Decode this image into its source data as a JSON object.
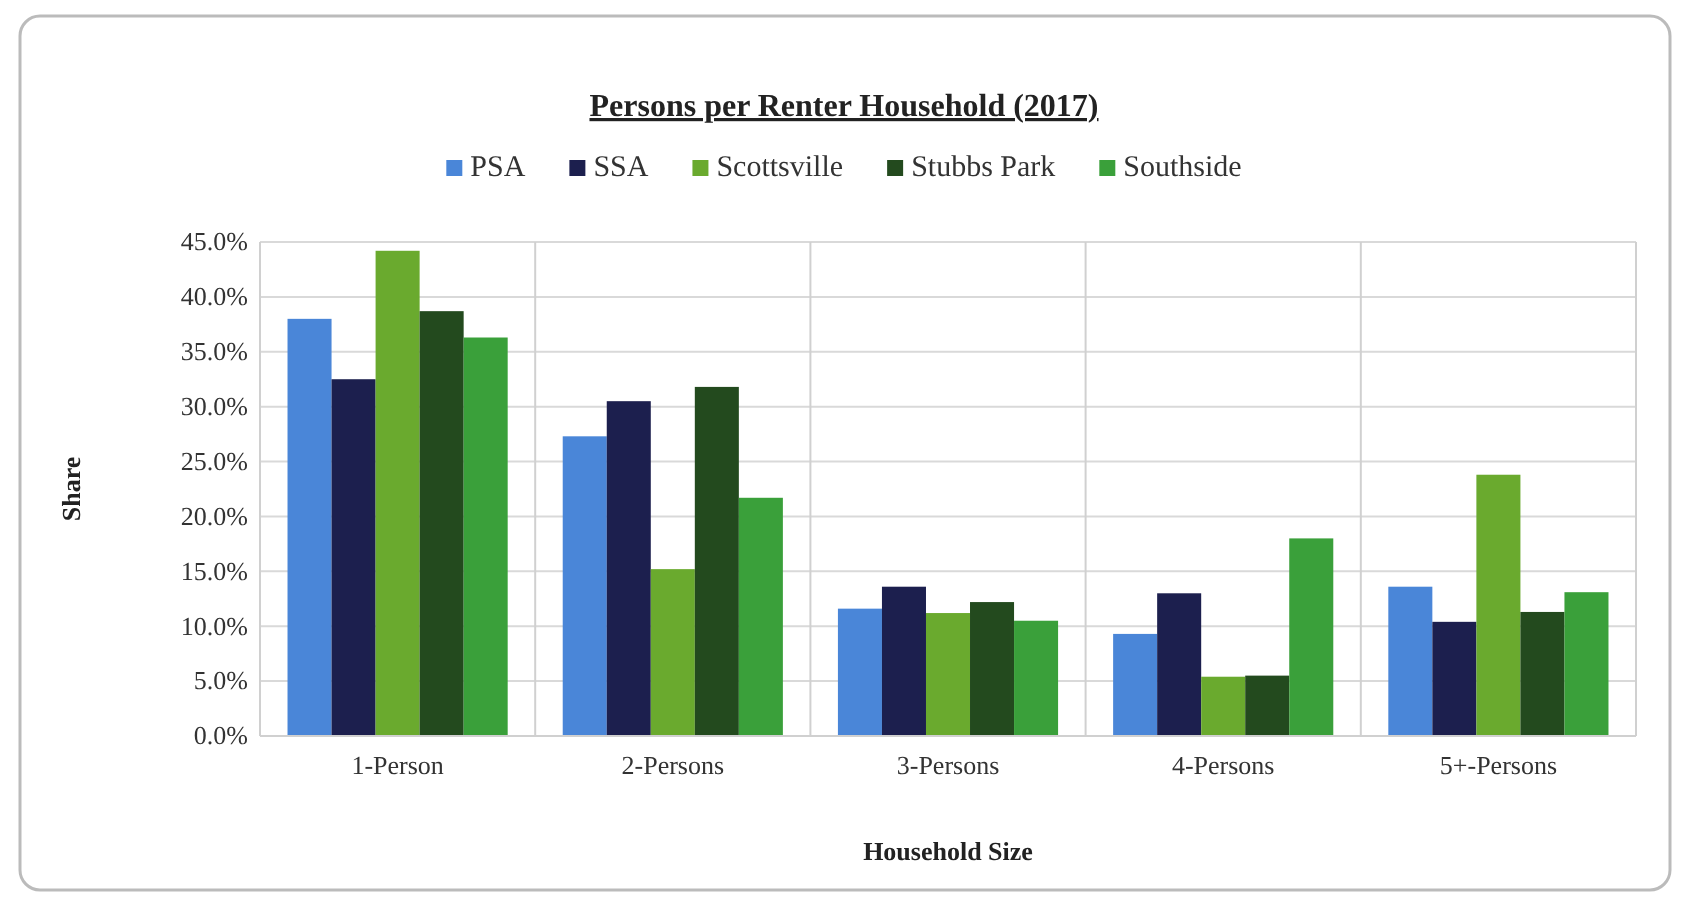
{
  "chart_data": {
    "type": "bar",
    "title": "Persons per Renter Household (2017)",
    "xlabel": "Household Size",
    "ylabel": "Share",
    "categories": [
      "1-Person",
      "2-Persons",
      "3-Persons",
      "4-Persons",
      "5+-Persons"
    ],
    "series": [
      {
        "name": "PSA",
        "color": "#4a86d8",
        "values": [
          38.0,
          27.3,
          11.6,
          9.3,
          13.6
        ]
      },
      {
        "name": "SSA",
        "color": "#1c1f4e",
        "values": [
          32.5,
          30.5,
          13.6,
          13.0,
          10.4
        ]
      },
      {
        "name": "Scottsville",
        "color": "#6aaa2e",
        "values": [
          44.2,
          15.2,
          11.2,
          5.4,
          23.8
        ]
      },
      {
        "name": "Stubbs Park",
        "color": "#234a1e",
        "values": [
          38.7,
          31.8,
          12.2,
          5.5,
          11.3
        ]
      },
      {
        "name": "Southside",
        "color": "#3aa03a",
        "values": [
          36.3,
          21.7,
          10.5,
          18.0,
          13.1
        ]
      }
    ],
    "ylim": [
      0,
      45
    ],
    "yticks": [
      {
        "value": 0,
        "label": "0.0%"
      },
      {
        "value": 5,
        "label": "5.0%"
      },
      {
        "value": 10,
        "label": "10.0%"
      },
      {
        "value": 15,
        "label": "15.0%"
      },
      {
        "value": 20,
        "label": "20.0%"
      },
      {
        "value": 25,
        "label": "25.0%"
      },
      {
        "value": 30,
        "label": "30.0%"
      },
      {
        "value": 35,
        "label": "35.0%"
      },
      {
        "value": 40,
        "label": "40.0%"
      },
      {
        "value": 45,
        "label": "45.0%"
      }
    ],
    "grid": true,
    "legend": "top"
  }
}
